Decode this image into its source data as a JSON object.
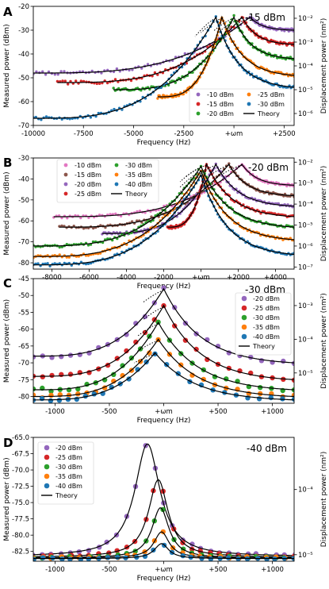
{
  "chart_data": [
    {
      "type": "scatter",
      "panel_letter": "A",
      "annotation": "-15 dBm",
      "xlabel": "Frequency (Hz)",
      "ylabel": "Measured power (dBm)",
      "ylabel_right": "Displacement power (nm²)",
      "xlim": [
        -10000,
        3000
      ],
      "ylim": [
        -70,
        -20
      ],
      "xticks": [
        -10000,
        -7500,
        -5000,
        -2500,
        0,
        2500
      ],
      "xtick_labels": [
        "-10000",
        "-7500",
        "-5000",
        "-2500",
        "+ωm",
        "+2500"
      ],
      "yticks": [
        -70,
        -60,
        -50,
        -40,
        -30,
        -20
      ],
      "ytick_labels": [
        "-70",
        "-60",
        "-50",
        "-40",
        "-30",
        "-20"
      ],
      "right_ticks": [
        {
          "label": "10⁻²",
          "y": -25
        },
        {
          "label": "10⁻³",
          "y": -35
        },
        {
          "label": "10⁻⁴",
          "y": -45
        },
        {
          "label": "10⁻⁵",
          "y": -55
        },
        {
          "label": "10⁻⁶",
          "y": -65
        }
      ],
      "legend_placement": "bottom-right",
      "legend_columns": 2,
      "legend": [
        {
          "label": "-10 dBm",
          "color": "#9467bd"
        },
        {
          "label": "-25 dBm",
          "color": "#ff7f0e"
        },
        {
          "label": "-15 dBm",
          "color": "#d62728"
        },
        {
          "label": "-30 dBm",
          "color": "#1f77b4"
        },
        {
          "label": "-20 dBm",
          "color": "#2ca02c"
        },
        {
          "label": "Theory",
          "color": "#000000",
          "line": true
        }
      ],
      "series": [
        {
          "name": "-10 dBm",
          "color": "#9467bd",
          "edge": -10000,
          "base": -48,
          "peak_x": 800,
          "peak_y": -24.5,
          "tail": -30
        },
        {
          "name": "-15 dBm",
          "color": "#d62728",
          "edge": -8800,
          "base": -52,
          "peak_x": 400,
          "peak_y": -24.5,
          "tail": -36
        },
        {
          "name": "-20 dBm",
          "color": "#2ca02c",
          "edge": -6000,
          "base": -55,
          "peak_x": 0,
          "peak_y": -24.5,
          "tail": -42
        },
        {
          "name": "-25 dBm",
          "color": "#ff7f0e",
          "edge": -3800,
          "base": -58,
          "peak_x": -600,
          "peak_y": -24.5,
          "tail": -49
        },
        {
          "name": "-30 dBm",
          "color": "#1f77b4",
          "edge": -10000,
          "base": -67,
          "peak_x": -900,
          "peak_y": -24.5,
          "tail": -54
        }
      ]
    },
    {
      "type": "scatter",
      "panel_letter": "B",
      "annotation": "-20 dBm",
      "xlabel": "Frequency (Hz)",
      "ylabel": "Measured power (dBm)",
      "ylabel_right": "Displacement power (nm²)",
      "xlim": [
        -9000,
        5000
      ],
      "ylim": [
        -83,
        -30
      ],
      "xticks": [
        -8000,
        -6000,
        -4000,
        -2000,
        0,
        2000,
        4000
      ],
      "xtick_labels": [
        "-8000",
        "-6000",
        "-4000",
        "-2000",
        "+ωm",
        "+2000",
        "+4000"
      ],
      "yticks": [
        -80,
        -70,
        -60,
        -50,
        -40,
        -30
      ],
      "ytick_labels": [
        "-80",
        "-70",
        "-60",
        "-50",
        "-40",
        "-30"
      ],
      "right_ticks": [
        {
          "label": "10⁻²",
          "y": -32
        },
        {
          "label": "10⁻³",
          "y": -42
        },
        {
          "label": "10⁻⁴",
          "y": -52
        },
        {
          "label": "10⁻⁵",
          "y": -62
        },
        {
          "label": "10⁻⁶",
          "y": -72
        },
        {
          "label": "10⁻⁷",
          "y": -82
        }
      ],
      "legend_placement": "upper-left",
      "legend_columns": 2,
      "legend": [
        {
          "label": "-10 dBm",
          "color": "#e377c2"
        },
        {
          "label": "-30 dBm",
          "color": "#2ca02c"
        },
        {
          "label": "-15 dBm",
          "color": "#8c564b"
        },
        {
          "label": "-35 dBm",
          "color": "#ff7f0e"
        },
        {
          "label": "-20 dBm",
          "color": "#9467bd"
        },
        {
          "label": "-40 dBm",
          "color": "#1f77b4"
        },
        {
          "label": "-25 dBm",
          "color": "#d62728"
        },
        {
          "label": "Theory",
          "color": "#000000",
          "line": true
        }
      ],
      "series": [
        {
          "name": "-10 dBm",
          "color": "#e377c2",
          "edge": -7900,
          "base": -58,
          "peak_x": 2200,
          "peak_y": -33,
          "tail": -43
        },
        {
          "name": "-15 dBm",
          "color": "#8c564b",
          "edge": -7600,
          "base": -63,
          "peak_x": 1500,
          "peak_y": -33,
          "tail": -48
        },
        {
          "name": "-20 dBm",
          "color": "#9467bd",
          "edge": -5300,
          "base": -66,
          "peak_x": 800,
          "peak_y": -33,
          "tail": -53
        },
        {
          "name": "-25 dBm",
          "color": "#d62728",
          "edge": -1800,
          "base": -63,
          "peak_x": 300,
          "peak_y": -33,
          "tail": -58
        },
        {
          "name": "-30 dBm",
          "color": "#2ca02c",
          "edge": -9000,
          "base": -72,
          "peak_x": 0,
          "peak_y": -34,
          "tail": -63
        },
        {
          "name": "-35 dBm",
          "color": "#ff7f0e",
          "edge": -9000,
          "base": -77,
          "peak_x": 0,
          "peak_y": -36,
          "tail": -69
        },
        {
          "name": "-40 dBm",
          "color": "#1f77b4",
          "edge": -9000,
          "base": -81,
          "peak_x": 0,
          "peak_y": -38,
          "tail": -76
        }
      ]
    },
    {
      "type": "scatter",
      "panel_letter": "C",
      "annotation": "-30 dBm",
      "xlabel": "Frequency (Hz)",
      "ylabel": "Measured power (dBm)",
      "ylabel_right": "Displacement power (nm²)",
      "xlim": [
        -1200,
        1200
      ],
      "ylim": [
        -82,
        -45
      ],
      "xticks": [
        -1000,
        -500,
        0,
        500,
        1000
      ],
      "xtick_labels": [
        "-1000",
        "-500",
        "+ωm",
        "+500",
        "+1000"
      ],
      "yticks": [
        -80,
        -75,
        -70,
        -65,
        -60,
        -55,
        -50,
        -45
      ],
      "ytick_labels": [
        "-80",
        "-75",
        "-70",
        "-65",
        "-60",
        "-55",
        "-50",
        "-45"
      ],
      "right_ticks": [
        {
          "label": "10⁻³",
          "y": -53
        },
        {
          "label": "10⁻⁴",
          "y": -63
        },
        {
          "label": "10⁻⁵",
          "y": -73
        }
      ],
      "legend_placement": "upper-right",
      "legend_columns": 1,
      "legend": [
        {
          "label": "-20 dBm",
          "color": "#9467bd"
        },
        {
          "label": "-25 dBm",
          "color": "#d62728"
        },
        {
          "label": "-30 dBm",
          "color": "#2ca02c"
        },
        {
          "label": "-35 dBm",
          "color": "#ff7f0e"
        },
        {
          "label": "-40 dBm",
          "color": "#1f77b4"
        },
        {
          "label": "Theory",
          "color": "#000000",
          "line": true
        }
      ],
      "series": [
        {
          "name": "-20 dBm",
          "color": "#9467bd",
          "edge": -1200,
          "base": -68,
          "peak_x": 0,
          "peak_y": -48,
          "tail": -70,
          "jump_x": -400
        },
        {
          "name": "-25 dBm",
          "color": "#d62728",
          "edge": -1200,
          "base": -74,
          "peak_x": 0,
          "peak_y": -53,
          "tail": -75,
          "jump_x": -200
        },
        {
          "name": "-30 dBm",
          "color": "#2ca02c",
          "edge": -1200,
          "base": -78,
          "peak_x": -50,
          "peak_y": -58,
          "tail": -78
        },
        {
          "name": "-35 dBm",
          "color": "#ff7f0e",
          "edge": -1200,
          "base": -80,
          "peak_x": -50,
          "peak_y": -63,
          "tail": -80
        },
        {
          "name": "-40 dBm",
          "color": "#1f77b4",
          "edge": -1200,
          "base": -81,
          "peak_x": -80,
          "peak_y": -67,
          "tail": -81
        }
      ]
    },
    {
      "type": "scatter",
      "panel_letter": "D",
      "annotation": "-40 dBm",
      "xlabel": "Frequency (Hz)",
      "ylabel": "Measured power (dBm)",
      "ylabel_right": "Displacement power (nm²)",
      "xlim": [
        -1200,
        1200
      ],
      "ylim": [
        -84,
        -65
      ],
      "xticks": [
        -1000,
        -500,
        0,
        500,
        1000
      ],
      "xtick_labels": [
        "-1000",
        "-500",
        "+ωm",
        "+500",
        "+1000"
      ],
      "yticks": [
        -82.5,
        -80,
        -77.5,
        -75,
        -72.5,
        -70,
        -67.5,
        -65
      ],
      "ytick_labels": [
        "-82.5",
        "-80.0",
        "-77.5",
        "-75.0",
        "-72.5",
        "-70.0",
        "-67.5",
        "-65.0"
      ],
      "right_ticks": [
        {
          "label": "10⁻⁴",
          "y": -73
        },
        {
          "label": "10⁻⁵",
          "y": -83
        }
      ],
      "legend_placement": "upper-left",
      "legend_columns": 1,
      "legend": [
        {
          "label": "-20 dBm",
          "color": "#9467bd"
        },
        {
          "label": "-25 dBm",
          "color": "#d62728"
        },
        {
          "label": "-30 dBm",
          "color": "#2ca02c"
        },
        {
          "label": "-35 dBm",
          "color": "#ff7f0e"
        },
        {
          "label": "-40 dBm",
          "color": "#1f77b4"
        },
        {
          "label": "Theory",
          "color": "#000000",
          "line": true
        }
      ],
      "series": [
        {
          "name": "-20 dBm",
          "color": "#9467bd",
          "peak_x": -150,
          "peak_y": -66,
          "floor": -83.3,
          "width": 140
        },
        {
          "name": "-25 dBm",
          "color": "#d62728",
          "peak_x": -50,
          "peak_y": -71.5,
          "floor": -83.4,
          "width": 110
        },
        {
          "name": "-30 dBm",
          "color": "#2ca02c",
          "peak_x": -30,
          "peak_y": -75.8,
          "floor": -83.5,
          "width": 95
        },
        {
          "name": "-35 dBm",
          "color": "#ff7f0e",
          "peak_x": -20,
          "peak_y": -79.5,
          "floor": -83.5,
          "width": 85
        },
        {
          "name": "-40 dBm",
          "color": "#1f77b4",
          "peak_x": -20,
          "peak_y": -81.3,
          "floor": -83.6,
          "width": 80
        }
      ]
    }
  ]
}
